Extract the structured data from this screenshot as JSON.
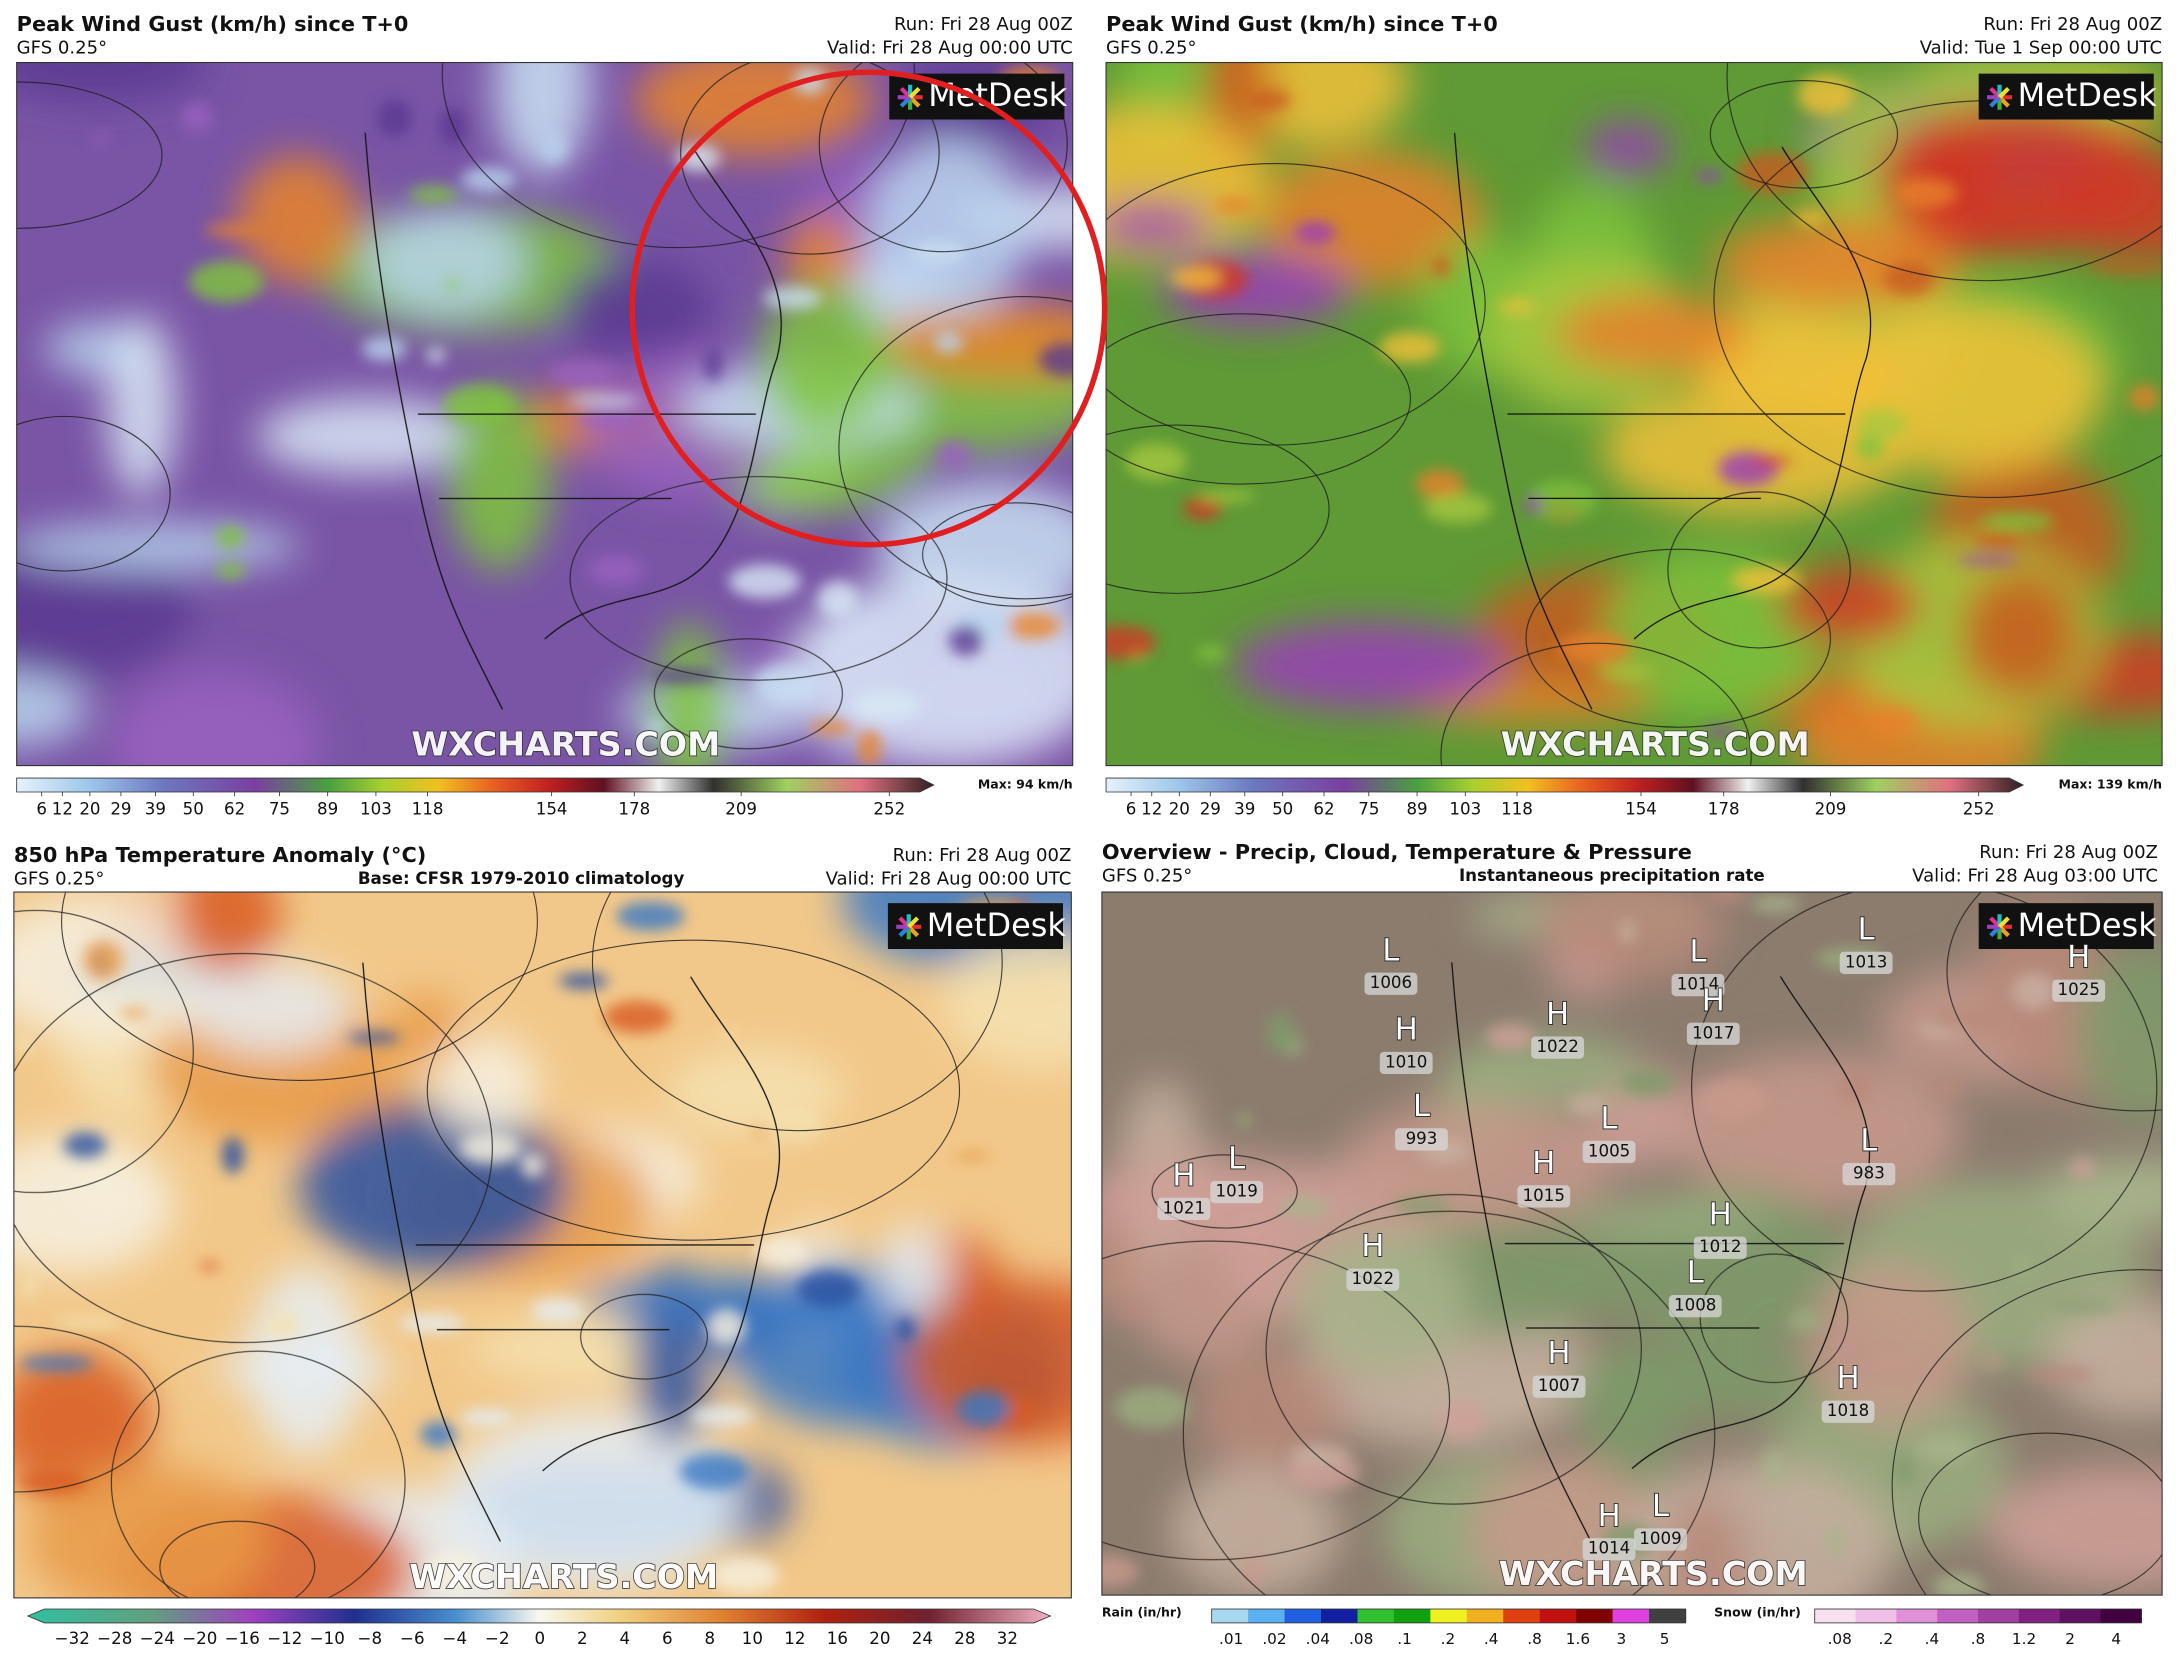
{
  "panels": [
    {
      "title": "Peak Wind Gust (km/h) since T+0",
      "model": "GFS 0.25°",
      "run": "Run: Fri 28 Aug 00Z",
      "valid": "Valid: Fri 28 Aug 00:00 UTC",
      "logo": "MetDesk",
      "watermark": "WXCHARTS.COM",
      "colorbar": {
        "ticks": [
          6,
          12,
          20,
          29,
          39,
          50,
          62,
          75,
          89,
          103,
          118,
          154,
          178,
          209,
          252
        ],
        "max": "Max: 94 km/h"
      }
    },
    {
      "title": "Peak Wind Gust (km/h) since T+0",
      "model": "GFS 0.25°",
      "run": "Run: Fri 28 Aug 00Z",
      "valid": "Valid: Tue 1 Sep 00:00 UTC",
      "logo": "MetDesk",
      "watermark": "WXCHARTS.COM",
      "colorbar": {
        "ticks": [
          6,
          12,
          20,
          29,
          39,
          50,
          62,
          75,
          89,
          103,
          118,
          154,
          178,
          209,
          252
        ],
        "max": "Max: 139 km/h"
      }
    },
    {
      "title": "850 hPa Temperature Anomaly (°C)",
      "model": "GFS 0.25°",
      "subtitle": "Base: CFSR 1979-2010 climatology",
      "run": "Run: Fri 28 Aug 00Z",
      "valid": "Valid: Fri 28 Aug 00:00 UTC",
      "logo": "MetDesk",
      "watermark": "WXCHARTS.COM",
      "colorbar": {
        "ticks": [
          "−32",
          "−28",
          "−24",
          "−20",
          "−16",
          "−12",
          "−10",
          "−8",
          "−6",
          "−4",
          "−2",
          "0",
          "2",
          "4",
          "6",
          "8",
          "10",
          "12",
          "16",
          "20",
          "24",
          "28",
          "32"
        ]
      }
    },
    {
      "title": "Overview - Precip, Cloud, Temperature & Pressure",
      "model": "GFS 0.25°",
      "subtitle": "Instantaneous precipitation rate",
      "run": "Run: Fri 28 Aug 00Z",
      "valid": "Valid: Fri 28 Aug 03:00 UTC",
      "logo": "MetDesk",
      "watermark": "WXCHARTS.COM",
      "rain": {
        "label": "Rain (in/hr)",
        "ticks": [
          ".01",
          ".02",
          ".04",
          ".08",
          ".1",
          ".2",
          ".4",
          ".8",
          "1.6",
          "3",
          "5"
        ]
      },
      "snow": {
        "label": "Snow (in/hr)",
        "ticks": [
          ".08",
          ".2",
          ".4",
          ".8",
          "1.2",
          "2",
          "4"
        ]
      },
      "pressure_centers": [
        {
          "kind": "L",
          "value": "1006"
        },
        {
          "kind": "H",
          "value": "1010"
        },
        {
          "kind": "L",
          "value": "993"
        },
        {
          "kind": "H",
          "value": "1021"
        },
        {
          "kind": "L",
          "value": "1019"
        },
        {
          "kind": "H",
          "value": "1022"
        },
        {
          "kind": "L",
          "value": "1014"
        },
        {
          "kind": "H",
          "value": "1017"
        },
        {
          "kind": "L",
          "value": "1005"
        },
        {
          "kind": "H",
          "value": "1015"
        },
        {
          "kind": "H",
          "value": "1022"
        },
        {
          "kind": "H",
          "value": "1012"
        },
        {
          "kind": "L",
          "value": "1008"
        },
        {
          "kind": "H",
          "value": "1007"
        },
        {
          "kind": "L",
          "value": "1013"
        },
        {
          "kind": "H",
          "value": "1025"
        },
        {
          "kind": "L",
          "value": "983"
        },
        {
          "kind": "H",
          "value": "1018"
        },
        {
          "kind": "H",
          "value": "1014"
        },
        {
          "kind": "L",
          "value": "1009"
        }
      ]
    }
  ]
}
